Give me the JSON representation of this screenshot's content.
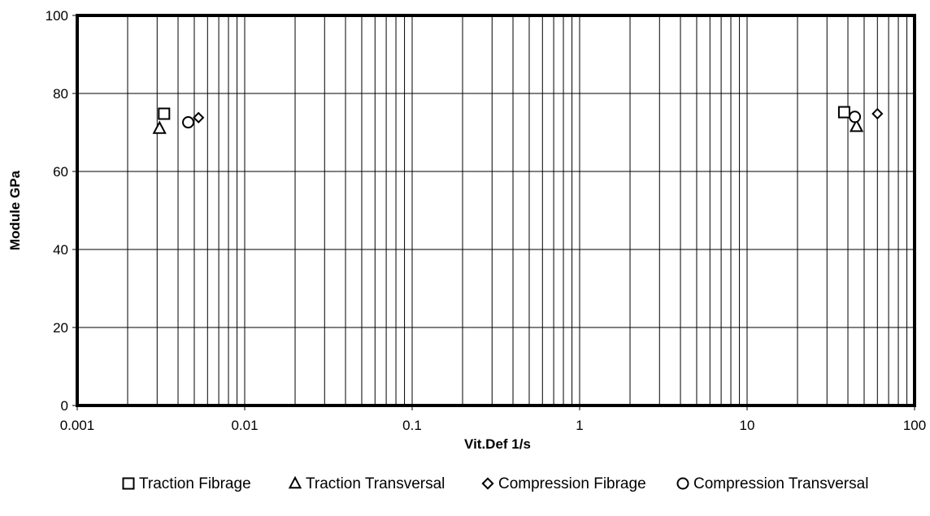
{
  "chart_data": {
    "type": "scatter",
    "title": "",
    "xlabel": "Vit.Def 1/s",
    "ylabel": "Module GPa",
    "x_scale": "log",
    "xlim": [
      0.001,
      100
    ],
    "ylim": [
      0,
      100
    ],
    "x_ticks": [
      {
        "value": 0.001,
        "label": "0.001"
      },
      {
        "value": 0.01,
        "label": "0.01"
      },
      {
        "value": 0.1,
        "label": "0.1"
      },
      {
        "value": 1,
        "label": "1"
      },
      {
        "value": 10,
        "label": "10"
      },
      {
        "value": 100,
        "label": "100"
      }
    ],
    "y_ticks": [
      {
        "value": 0,
        "label": "0"
      },
      {
        "value": 20,
        "label": "20"
      },
      {
        "value": 40,
        "label": "40"
      },
      {
        "value": 60,
        "label": "60"
      },
      {
        "value": 80,
        "label": "80"
      },
      {
        "value": 100,
        "label": "100"
      }
    ],
    "grid": true,
    "legend_position": "bottom",
    "series": [
      {
        "name": "Traction Fibrage",
        "marker": "square",
        "points": [
          {
            "x": 0.0033,
            "y": 74.8
          },
          {
            "x": 38,
            "y": 75.2
          }
        ]
      },
      {
        "name": "Traction Transversal",
        "marker": "triangle",
        "points": [
          {
            "x": 0.0031,
            "y": 71.0
          },
          {
            "x": 45,
            "y": 71.5
          }
        ]
      },
      {
        "name": "Compression Fibrage",
        "marker": "diamond",
        "points": [
          {
            "x": 0.0053,
            "y": 73.8
          },
          {
            "x": 60,
            "y": 74.8
          }
        ]
      },
      {
        "name": "Compression Transversal",
        "marker": "circle",
        "points": [
          {
            "x": 0.0046,
            "y": 72.6
          },
          {
            "x": 44,
            "y": 74.0
          }
        ]
      }
    ]
  }
}
